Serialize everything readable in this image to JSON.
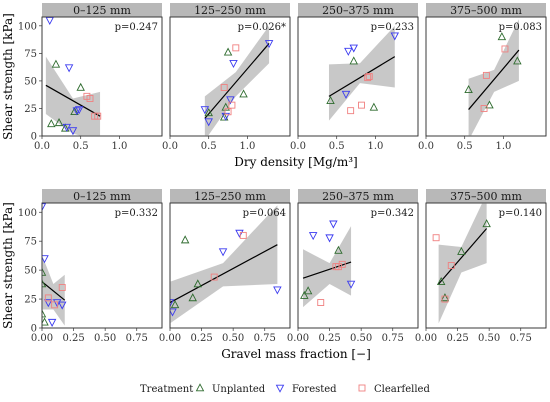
{
  "colors": {
    "Unplanted": "#2e6b2e",
    "Forested": "#3a3af0",
    "Clearfelled": "#f08080"
  },
  "legend": {
    "title": "Treatment",
    "placement": "bottom"
  },
  "chart_data": [
    {
      "type": "scatter",
      "row": 0,
      "strip": "0–125 mm",
      "p_text": "p=0.247",
      "xlabel": "Dry density [Mg/m³]",
      "ylabel": "Shear strength [kPa]",
      "xlim": [
        0,
        1.55
      ],
      "ylim": [
        0,
        108
      ],
      "xticks": [
        "0.0",
        "0.5",
        "1.0"
      ],
      "yticks": [
        0,
        25,
        50,
        75,
        100
      ],
      "grid": false,
      "fit": {
        "x": [
          0.05,
          0.75
        ],
        "y": [
          46,
          18
        ]
      },
      "band": {
        "x": [
          0.05,
          0.4,
          0.75
        ],
        "upper": [
          72,
          34,
          40
        ],
        "lower": [
          20,
          2,
          -4
        ]
      },
      "series": [
        {
          "name": "Unplanted",
          "marker": "triangle-up",
          "points": [
            [
              0.12,
              11
            ],
            [
              0.18,
              65
            ],
            [
              0.22,
              12
            ],
            [
              0.3,
              7
            ],
            [
              0.42,
              22
            ],
            [
              0.5,
              44
            ]
          ]
        },
        {
          "name": "Forested",
          "marker": "triangle-down",
          "points": [
            [
              0.1,
              105
            ],
            [
              0.35,
              62
            ],
            [
              0.32,
              8
            ],
            [
              0.48,
              24
            ],
            [
              0.45,
              23
            ],
            [
              0.4,
              5
            ]
          ]
        },
        {
          "name": "Clearfelled",
          "marker": "square",
          "points": [
            [
              0.58,
              36
            ],
            [
              0.62,
              34
            ],
            [
              0.68,
              18
            ],
            [
              0.72,
              18
            ]
          ]
        }
      ]
    },
    {
      "type": "scatter",
      "row": 0,
      "strip": "125–250 mm",
      "p_text": "p=0.026*",
      "xlim": [
        0,
        1.55
      ],
      "ylim": [
        0,
        108
      ],
      "xticks": [
        "0.0",
        "0.5",
        "1.0"
      ],
      "fit": {
        "x": [
          0.45,
          1.28
        ],
        "y": [
          16,
          84
        ]
      },
      "band": {
        "x": [
          0.45,
          0.85,
          1.28
        ],
        "upper": [
          36,
          58,
          100
        ],
        "lower": [
          -4,
          36,
          66
        ]
      },
      "series": [
        {
          "name": "Unplanted",
          "marker": "triangle-up",
          "points": [
            [
              0.5,
              21
            ],
            [
              0.7,
              17
            ],
            [
              0.72,
              26
            ],
            [
              0.75,
              76
            ],
            [
              0.95,
              38
            ]
          ]
        },
        {
          "name": "Forested",
          "marker": "triangle-down",
          "points": [
            [
              0.45,
              24
            ],
            [
              0.5,
              13
            ],
            [
              0.72,
              18
            ],
            [
              0.78,
              33
            ],
            [
              0.82,
              66
            ],
            [
              1.28,
              84
            ]
          ]
        },
        {
          "name": "Clearfelled",
          "marker": "square",
          "points": [
            [
              0.7,
              44
            ],
            [
              0.75,
              22
            ],
            [
              0.8,
              28
            ],
            [
              0.85,
              80
            ]
          ]
        }
      ]
    },
    {
      "type": "scatter",
      "row": 0,
      "strip": "250–375 mm",
      "p_text": "p=0.233",
      "xlim": [
        0,
        1.55
      ],
      "ylim": [
        0,
        108
      ],
      "xticks": [
        "0.0",
        "0.5",
        "1.0"
      ],
      "fit": {
        "x": [
          0.4,
          1.25
        ],
        "y": [
          36,
          72
        ]
      },
      "band": {
        "x": [
          0.4,
          0.8,
          1.25
        ],
        "upper": [
          65,
          66,
          100
        ],
        "lower": [
          14,
          48,
          44
        ]
      },
      "series": [
        {
          "name": "Unplanted",
          "marker": "triangle-up",
          "points": [
            [
              0.42,
              32
            ],
            [
              0.72,
              68
            ],
            [
              0.98,
              26
            ]
          ]
        },
        {
          "name": "Forested",
          "marker": "triangle-down",
          "points": [
            [
              0.62,
              38
            ],
            [
              0.65,
              77
            ],
            [
              0.72,
              80
            ],
            [
              1.25,
              91
            ]
          ]
        },
        {
          "name": "Clearfelled",
          "marker": "square",
          "points": [
            [
              0.68,
              23
            ],
            [
              0.82,
              28
            ],
            [
              0.9,
              53
            ],
            [
              0.92,
              54
            ]
          ]
        }
      ]
    },
    {
      "type": "scatter",
      "row": 0,
      "strip": "375–500 mm",
      "p_text": "p=0.083",
      "xlim": [
        0,
        1.55
      ],
      "ylim": [
        0,
        108
      ],
      "xticks": [
        "0.0",
        "0.5",
        "1.0"
      ],
      "fit": {
        "x": [
          0.55,
          1.2
        ],
        "y": [
          24,
          78
        ]
      },
      "band": {
        "x": [
          0.55,
          0.88,
          1.2
        ],
        "upper": [
          52,
          60,
          106
        ],
        "lower": [
          -4,
          40,
          50
        ]
      },
      "series": [
        {
          "name": "Unplanted",
          "marker": "triangle-up",
          "points": [
            [
              0.55,
              42
            ],
            [
              0.82,
              28
            ],
            [
              0.98,
              90
            ],
            [
              1.18,
              68
            ]
          ]
        },
        {
          "name": "Forested",
          "marker": "triangle-down",
          "points": []
        },
        {
          "name": "Clearfelled",
          "marker": "square",
          "points": [
            [
              0.75,
              25
            ],
            [
              0.78,
              55
            ],
            [
              1.02,
              79
            ]
          ]
        }
      ]
    },
    {
      "type": "scatter",
      "row": 1,
      "strip": "0–125 mm",
      "p_text": "p=0.332",
      "xlabel": "Gravel mass fraction [−]",
      "ylabel": "Shear strength [kPa]",
      "xlim": [
        0,
        0.95
      ],
      "ylim": [
        0,
        108
      ],
      "xticks": [
        "0.00",
        "0.25",
        "0.50",
        "0.75"
      ],
      "yticks": [
        0,
        25,
        50,
        75,
        100
      ],
      "fit": {
        "x": [
          0.0,
          0.18
        ],
        "y": [
          40,
          24
        ]
      },
      "band": {
        "x": [
          0.0,
          0.09,
          0.18
        ],
        "upper": [
          63,
          38,
          46
        ],
        "lower": [
          16,
          16,
          2
        ]
      },
      "series": [
        {
          "name": "Unplanted",
          "marker": "triangle-up",
          "points": [
            [
              0.0,
              38
            ],
            [
              0.0,
              12
            ],
            [
              0.02,
              5
            ],
            [
              0.0,
              48
            ]
          ]
        },
        {
          "name": "Forested",
          "marker": "triangle-down",
          "points": [
            [
              0.0,
              105
            ],
            [
              0.02,
              60
            ],
            [
              0.05,
              22
            ],
            [
              0.08,
              5
            ],
            [
              0.12,
              22
            ],
            [
              0.16,
              20
            ]
          ]
        },
        {
          "name": "Clearfelled",
          "marker": "square",
          "points": [
            [
              0.05,
              26
            ],
            [
              0.1,
              20
            ],
            [
              0.16,
              35
            ]
          ]
        }
      ]
    },
    {
      "type": "scatter",
      "row": 1,
      "strip": "125–250 mm",
      "p_text": "p=0.064",
      "xlim": [
        0,
        0.95
      ],
      "ylim": [
        0,
        108
      ],
      "xticks": [
        "0.00",
        "0.25",
        "0.50",
        "0.75"
      ],
      "fit": {
        "x": [
          0.0,
          0.85
        ],
        "y": [
          22,
          72
        ]
      },
      "band": {
        "x": [
          0.0,
          0.42,
          0.85
        ],
        "upper": [
          40,
          56,
          106
        ],
        "lower": [
          4,
          36,
          38
        ]
      },
      "series": [
        {
          "name": "Unplanted",
          "marker": "triangle-up",
          "points": [
            [
              0.04,
              20
            ],
            [
              0.12,
              76
            ],
            [
              0.18,
              26
            ],
            [
              0.22,
              38
            ]
          ]
        },
        {
          "name": "Forested",
          "marker": "triangle-down",
          "points": [
            [
              0.0,
              22
            ],
            [
              0.02,
              14
            ],
            [
              0.42,
              66
            ],
            [
              0.55,
              82
            ],
            [
              0.85,
              33
            ]
          ]
        },
        {
          "name": "Clearfelled",
          "marker": "square",
          "points": [
            [
              0.35,
              44
            ],
            [
              0.58,
              80
            ]
          ]
        }
      ]
    },
    {
      "type": "scatter",
      "row": 1,
      "strip": "250–375 mm",
      "p_text": "p=0.342",
      "xlim": [
        0,
        0.95
      ],
      "ylim": [
        0,
        108
      ],
      "xticks": [
        "0.00",
        "0.25",
        "0.50",
        "0.75"
      ],
      "fit": {
        "x": [
          0.04,
          0.42
        ],
        "y": [
          43,
          57
        ]
      },
      "band": {
        "x": [
          0.04,
          0.25,
          0.42
        ],
        "upper": [
          68,
          56,
          88
        ],
        "lower": [
          18,
          38,
          28
        ]
      },
      "series": [
        {
          "name": "Unplanted",
          "marker": "triangle-up",
          "points": [
            [
              0.05,
              28
            ],
            [
              0.08,
              32
            ],
            [
              0.32,
              67
            ]
          ]
        },
        {
          "name": "Forested",
          "marker": "triangle-down",
          "points": [
            [
              0.12,
              80
            ],
            [
              0.25,
              78
            ],
            [
              0.28,
              90
            ],
            [
              0.42,
              38
            ]
          ]
        },
        {
          "name": "Clearfelled",
          "marker": "square",
          "points": [
            [
              0.18,
              22
            ],
            [
              0.3,
              53
            ],
            [
              0.32,
              53
            ],
            [
              0.35,
              55
            ]
          ]
        }
      ]
    },
    {
      "type": "scatter",
      "row": 1,
      "strip": "375–500 mm",
      "p_text": "p=0.140",
      "xlim": [
        0,
        0.95
      ],
      "ylim": [
        0,
        108
      ],
      "xticks": [
        "0.00",
        "0.25",
        "0.50",
        "0.75"
      ],
      "fit": {
        "x": [
          0.1,
          0.48
        ],
        "y": [
          38,
          86
        ]
      },
      "band": {
        "x": [
          0.1,
          0.28,
          0.48
        ],
        "upper": [
          72,
          70,
          116
        ],
        "lower": [
          4,
          48,
          56
        ]
      },
      "series": [
        {
          "name": "Unplanted",
          "marker": "triangle-up",
          "points": [
            [
              0.12,
              40
            ],
            [
              0.15,
              26
            ],
            [
              0.28,
              66
            ],
            [
              0.48,
              90
            ]
          ]
        },
        {
          "name": "Forested",
          "marker": "triangle-down",
          "points": []
        },
        {
          "name": "Clearfelled",
          "marker": "square",
          "points": [
            [
              0.08,
              78
            ],
            [
              0.15,
              25
            ],
            [
              0.2,
              54
            ]
          ]
        }
      ]
    }
  ]
}
